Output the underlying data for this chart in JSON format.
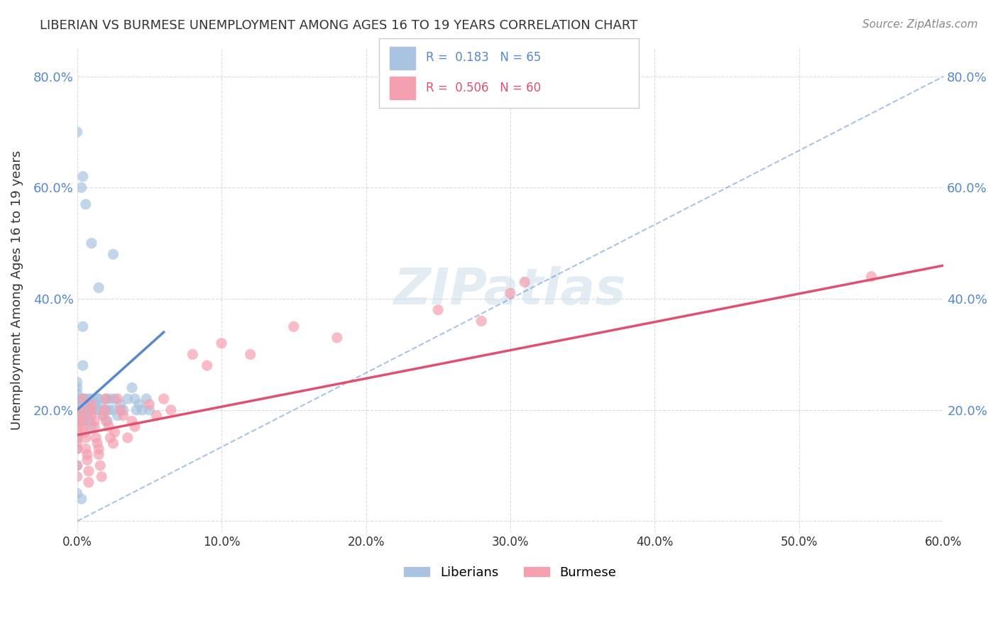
{
  "title": "LIBERIAN VS BURMESE UNEMPLOYMENT AMONG AGES 16 TO 19 YEARS CORRELATION CHART",
  "source": "Source: ZipAtlas.com",
  "ylabel": "Unemployment Among Ages 16 to 19 years",
  "xlim": [
    0.0,
    0.6
  ],
  "ylim": [
    -0.02,
    0.85
  ],
  "yticks": [
    0.0,
    0.2,
    0.4,
    0.6,
    0.8
  ],
  "ytick_labels": [
    "",
    "20.0%",
    "40.0%",
    "60.0%",
    "80.0%"
  ],
  "liberian_R": 0.183,
  "liberian_N": 65,
  "burmese_R": 0.506,
  "burmese_N": 60,
  "liberian_color": "#a8c4e0",
  "burmese_color": "#f4a0b0",
  "liberian_line_color": "#5588cc",
  "burmese_line_color": "#e05070",
  "watermark": "ZIPatlas",
  "background_color": "#ffffff",
  "grid_color": "#cccccc",
  "xtick_vals": [
    0.0,
    0.1,
    0.2,
    0.3,
    0.4,
    0.5,
    0.6
  ],
  "xtick_labels": [
    "0.0%",
    "10.0%",
    "20.0%",
    "30.0%",
    "40.0%",
    "50.0%",
    "60.0%"
  ]
}
